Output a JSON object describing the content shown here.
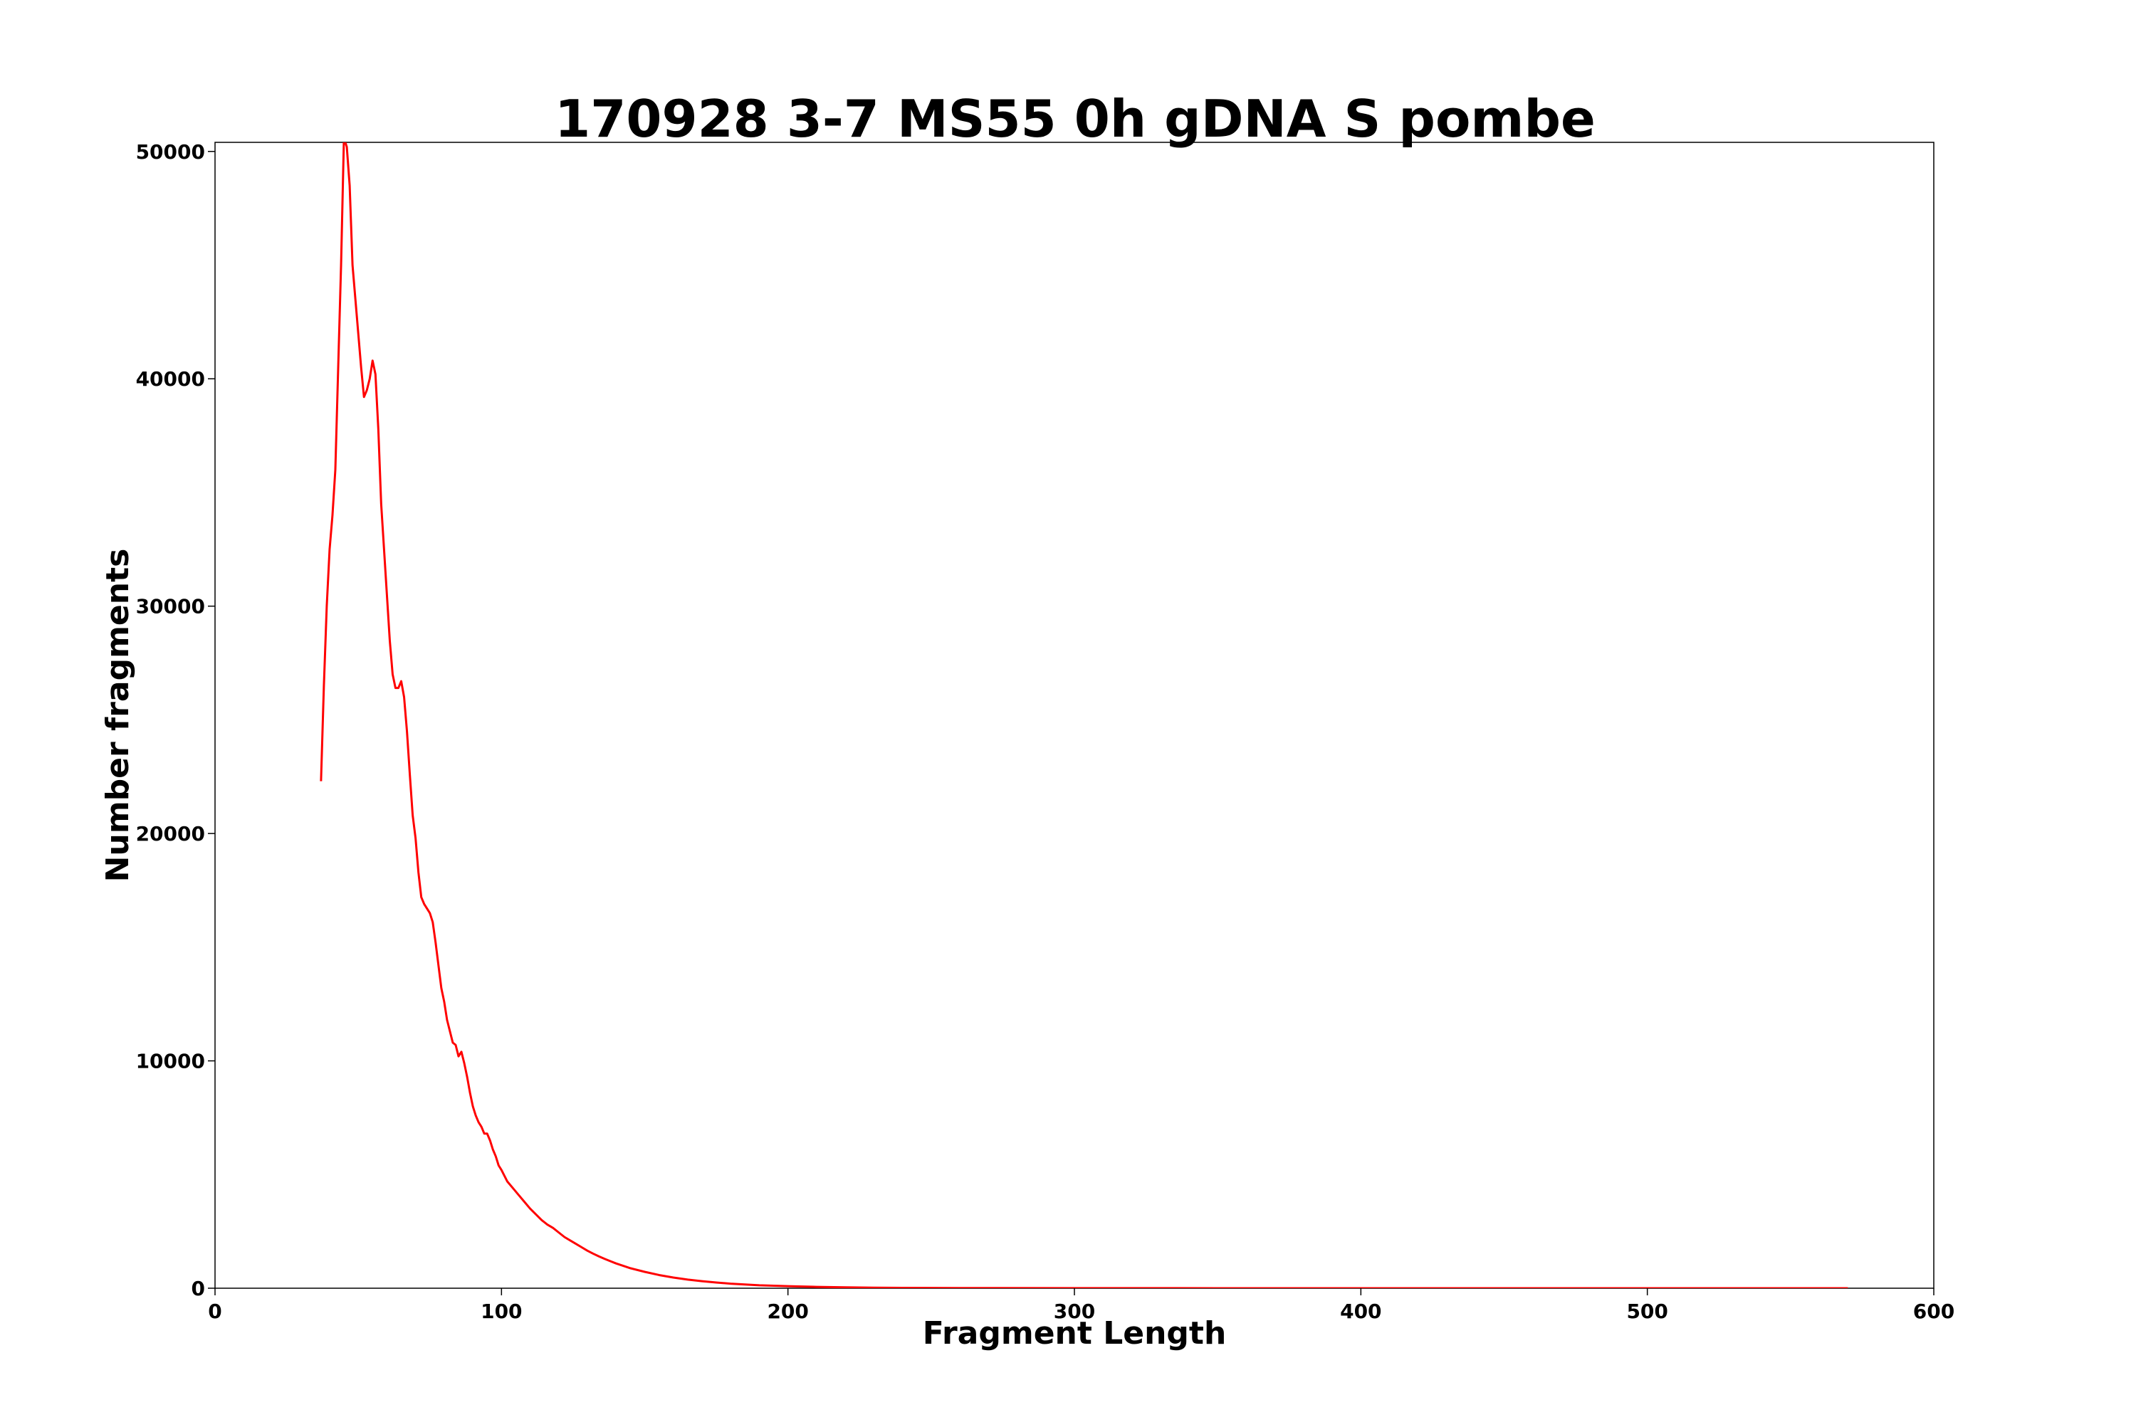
{
  "chart_data": {
    "type": "line",
    "title": "170928 3-7 MS55 0h gDNA S pombe",
    "xlabel": "Fragment Length",
    "ylabel": "Number fragments",
    "xlim": [
      0,
      600
    ],
    "ylim": [
      0,
      50400
    ],
    "xticks": [
      0,
      100,
      200,
      300,
      400,
      500,
      600
    ],
    "yticks": [
      0,
      10000,
      20000,
      30000,
      40000,
      50000
    ],
    "grid": false,
    "legend": "none",
    "series": [
      {
        "color": "#ff0000",
        "points": [
          [
            37,
            22300
          ],
          [
            38,
            26500
          ],
          [
            39,
            30000
          ],
          [
            40,
            32500
          ],
          [
            41,
            34000
          ],
          [
            42,
            36000
          ],
          [
            43,
            40500
          ],
          [
            44,
            45000
          ],
          [
            45,
            50600
          ],
          [
            46,
            50200
          ],
          [
            47,
            48500
          ],
          [
            48,
            45000
          ],
          [
            49,
            43500
          ],
          [
            50,
            42000
          ],
          [
            51,
            40500
          ],
          [
            52,
            39200
          ],
          [
            53,
            39500
          ],
          [
            54,
            40000
          ],
          [
            55,
            40800
          ],
          [
            56,
            40200
          ],
          [
            57,
            37800
          ],
          [
            58,
            34500
          ],
          [
            59,
            32500
          ],
          [
            60,
            30500
          ],
          [
            61,
            28500
          ],
          [
            62,
            27000
          ],
          [
            63,
            26400
          ],
          [
            64,
            26400
          ],
          [
            65,
            26700
          ],
          [
            66,
            26000
          ],
          [
            67,
            24500
          ],
          [
            68,
            22600
          ],
          [
            69,
            20800
          ],
          [
            70,
            19800
          ],
          [
            71,
            18300
          ],
          [
            72,
            17200
          ],
          [
            73,
            16900
          ],
          [
            74,
            16700
          ],
          [
            75,
            16500
          ],
          [
            76,
            16100
          ],
          [
            77,
            15200
          ],
          [
            78,
            14200
          ],
          [
            79,
            13200
          ],
          [
            80,
            12600
          ],
          [
            81,
            11800
          ],
          [
            82,
            11300
          ],
          [
            83,
            10800
          ],
          [
            84,
            10700
          ],
          [
            85,
            10200
          ],
          [
            86,
            10400
          ],
          [
            87,
            9900
          ],
          [
            88,
            9300
          ],
          [
            89,
            8600
          ],
          [
            90,
            8000
          ],
          [
            91,
            7600
          ],
          [
            92,
            7300
          ],
          [
            93,
            7100
          ],
          [
            94,
            6800
          ],
          [
            95,
            6800
          ],
          [
            96,
            6500
          ],
          [
            97,
            6100
          ],
          [
            98,
            5800
          ],
          [
            99,
            5400
          ],
          [
            100,
            5200
          ],
          [
            102,
            4700
          ],
          [
            104,
            4400
          ],
          [
            106,
            4100
          ],
          [
            108,
            3800
          ],
          [
            110,
            3500
          ],
          [
            112,
            3250
          ],
          [
            114,
            3000
          ],
          [
            116,
            2800
          ],
          [
            118,
            2650
          ],
          [
            120,
            2450
          ],
          [
            122,
            2250
          ],
          [
            124,
            2100
          ],
          [
            126,
            1950
          ],
          [
            128,
            1800
          ],
          [
            130,
            1650
          ],
          [
            132,
            1520
          ],
          [
            134,
            1400
          ],
          [
            136,
            1290
          ],
          [
            138,
            1190
          ],
          [
            140,
            1090
          ],
          [
            145,
            880
          ],
          [
            150,
            720
          ],
          [
            155,
            580
          ],
          [
            160,
            470
          ],
          [
            165,
            380
          ],
          [
            170,
            310
          ],
          [
            175,
            250
          ],
          [
            180,
            200
          ],
          [
            190,
            130
          ],
          [
            200,
            90
          ],
          [
            210,
            60
          ],
          [
            220,
            40
          ],
          [
            230,
            25
          ],
          [
            240,
            15
          ],
          [
            260,
            8
          ],
          [
            300,
            4
          ],
          [
            350,
            2
          ],
          [
            400,
            1
          ],
          [
            450,
            1
          ],
          [
            500,
            0
          ],
          [
            550,
            0
          ],
          [
            570,
            0
          ]
        ]
      }
    ]
  }
}
